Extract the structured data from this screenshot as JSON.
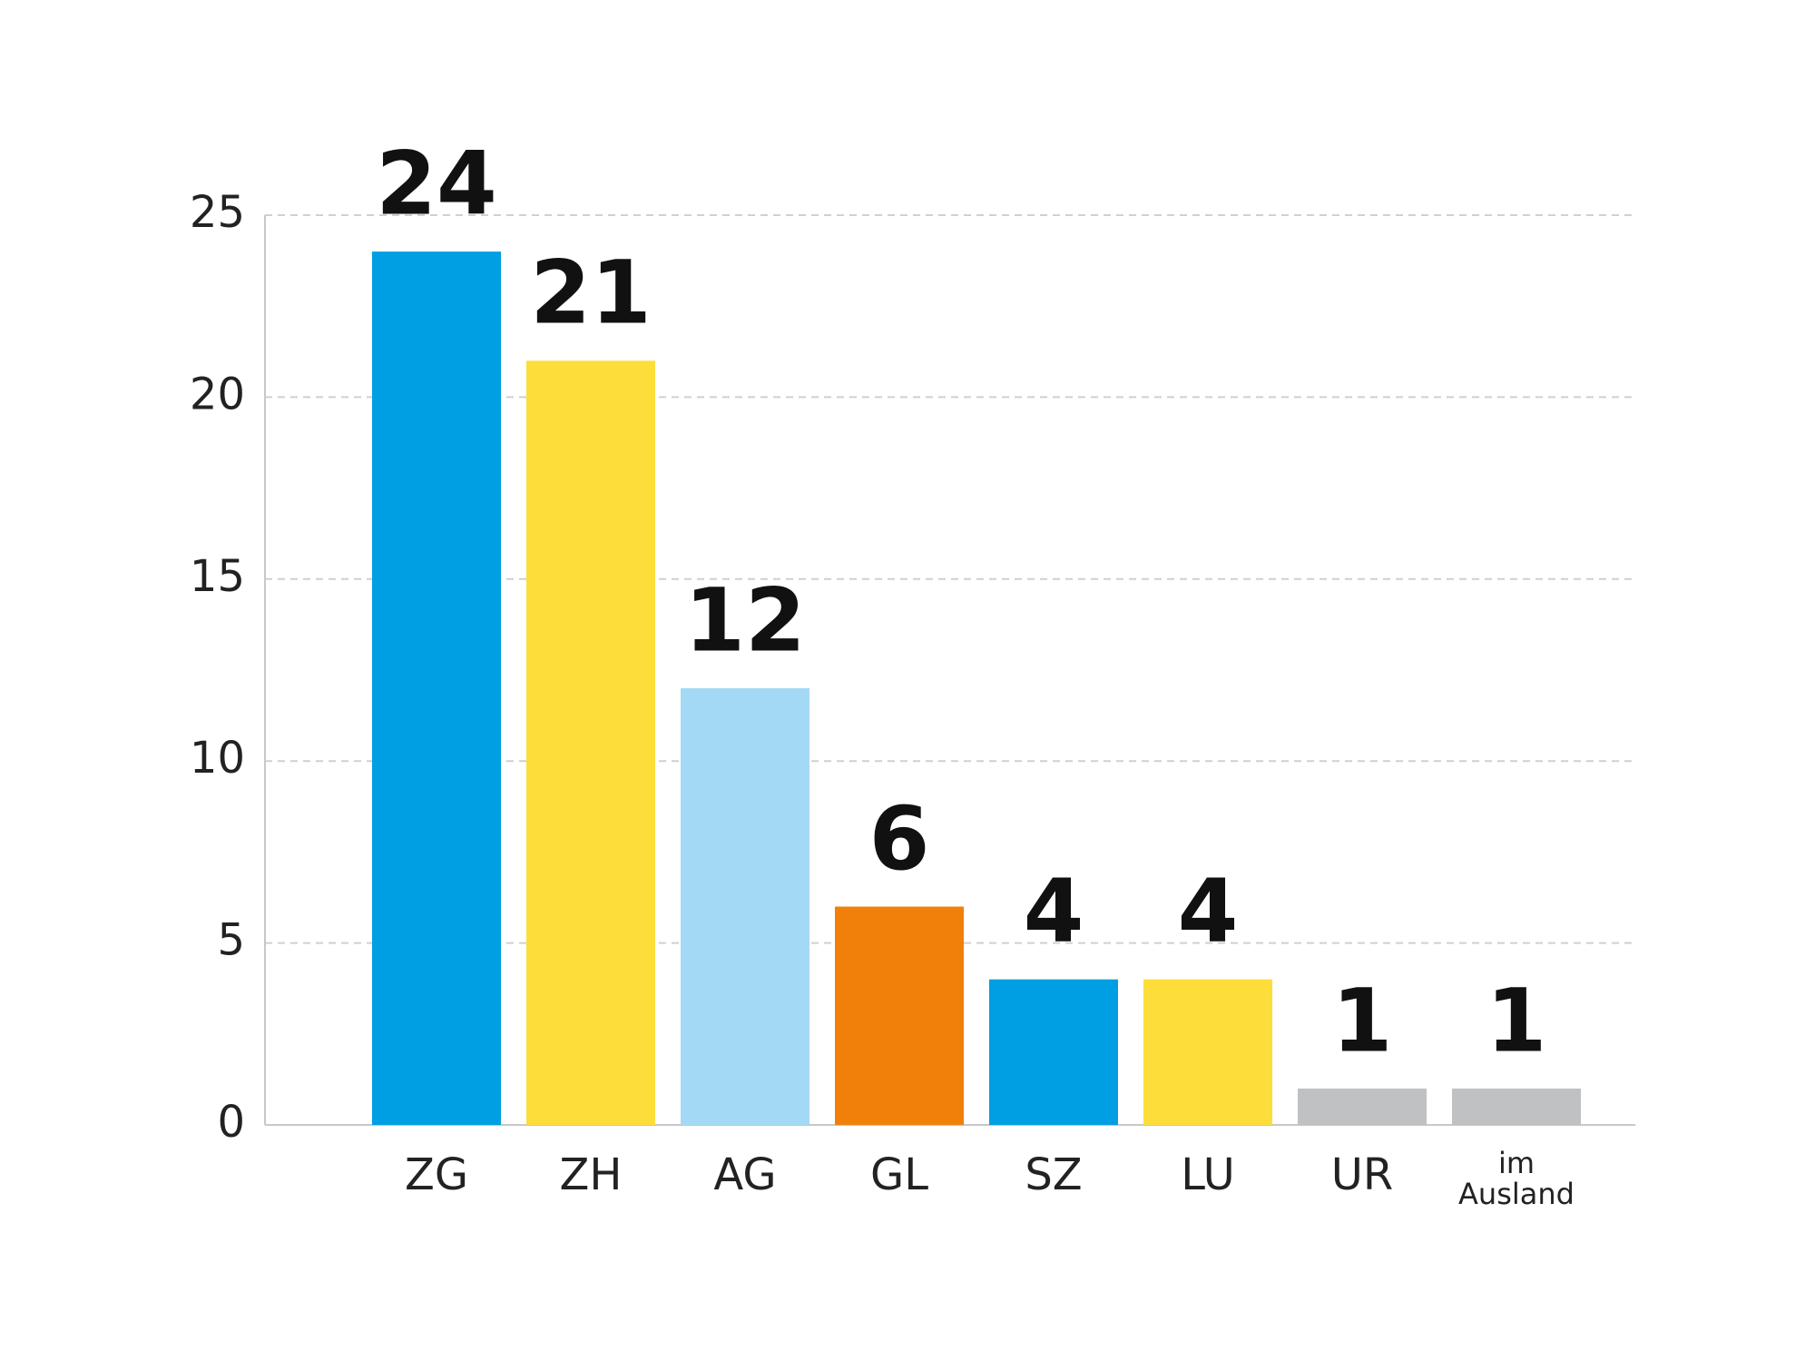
{
  "chart_data": {
    "type": "bar",
    "categories": [
      "ZG",
      "ZH",
      "AG",
      "GL",
      "SZ",
      "LU",
      "UR",
      "im Ausland"
    ],
    "values": [
      24,
      21,
      12,
      6,
      4,
      4,
      1,
      1
    ],
    "colors": [
      "#009fe3",
      "#fddd3a",
      "#a3d9f5",
      "#f08009",
      "#009fe3",
      "#fddd3a",
      "#c0c1c2",
      "#c0c1c2"
    ],
    "ylim": [
      0,
      25
    ],
    "yticks": [
      0,
      5,
      10,
      15,
      20,
      25
    ],
    "grid": true
  }
}
